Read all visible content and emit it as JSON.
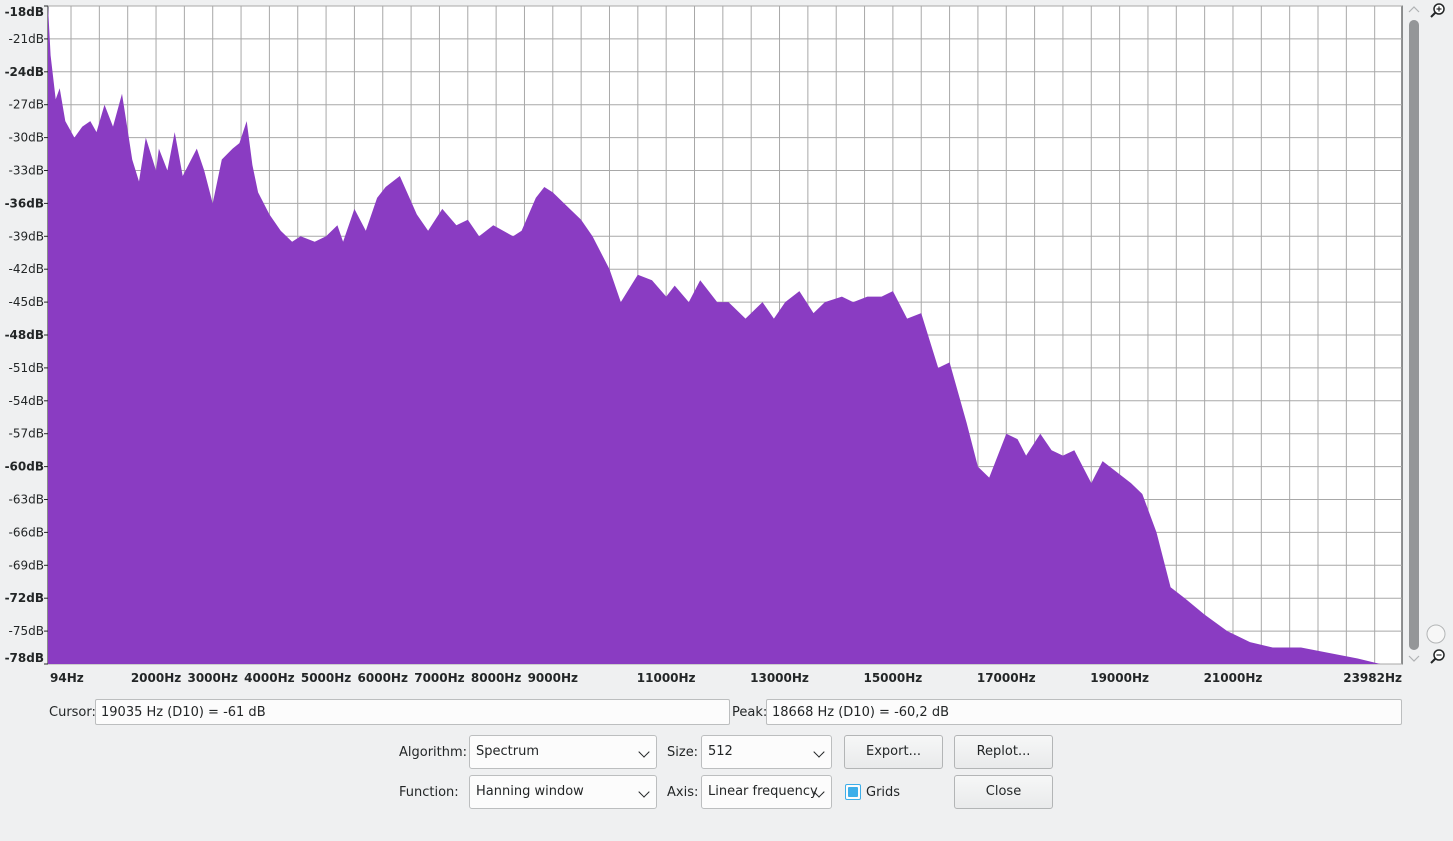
{
  "chart_data": {
    "type": "area",
    "color": "#8a3cc2",
    "grid": true,
    "xlim": [
      94,
      23982
    ],
    "ylim": [
      -78,
      -18
    ],
    "x_tick_labels": [
      {
        "hz": 94,
        "label": "94Hz"
      },
      {
        "hz": 2000,
        "label": "2000Hz"
      },
      {
        "hz": 3000,
        "label": "3000Hz"
      },
      {
        "hz": 4000,
        "label": "4000Hz"
      },
      {
        "hz": 5000,
        "label": "5000Hz"
      },
      {
        "hz": 6000,
        "label": "6000Hz"
      },
      {
        "hz": 7000,
        "label": "7000Hz"
      },
      {
        "hz": 8000,
        "label": "8000Hz"
      },
      {
        "hz": 9000,
        "label": "9000Hz"
      },
      {
        "hz": 11000,
        "label": "11000Hz"
      },
      {
        "hz": 13000,
        "label": "13000Hz"
      },
      {
        "hz": 15000,
        "label": "15000Hz"
      },
      {
        "hz": 17000,
        "label": "17000Hz"
      },
      {
        "hz": 19000,
        "label": "19000Hz"
      },
      {
        "hz": 21000,
        "label": "21000Hz"
      },
      {
        "hz": 23982,
        "label": "23982Hz"
      }
    ],
    "y_tick_labels": [
      {
        "db": -18,
        "label": "-18dB",
        "bold": true
      },
      {
        "db": -21,
        "label": "-21dB",
        "bold": false
      },
      {
        "db": -24,
        "label": "-24dB",
        "bold": true
      },
      {
        "db": -27,
        "label": "-27dB",
        "bold": false
      },
      {
        "db": -30,
        "label": "-30dB",
        "bold": false
      },
      {
        "db": -33,
        "label": "-33dB",
        "bold": false
      },
      {
        "db": -36,
        "label": "-36dB",
        "bold": true
      },
      {
        "db": -39,
        "label": "-39dB",
        "bold": false
      },
      {
        "db": -42,
        "label": "-42dB",
        "bold": false
      },
      {
        "db": -45,
        "label": "-45dB",
        "bold": false
      },
      {
        "db": -48,
        "label": "-48dB",
        "bold": true
      },
      {
        "db": -51,
        "label": "-51dB",
        "bold": false
      },
      {
        "db": -54,
        "label": "-54dB",
        "bold": false
      },
      {
        "db": -57,
        "label": "-57dB",
        "bold": false
      },
      {
        "db": -60,
        "label": "-60dB",
        "bold": true
      },
      {
        "db": -63,
        "label": "-63dB",
        "bold": false
      },
      {
        "db": -66,
        "label": "-66dB",
        "bold": false
      },
      {
        "db": -69,
        "label": "-69dB",
        "bold": false
      },
      {
        "db": -72,
        "label": "-72dB",
        "bold": true
      },
      {
        "db": -75,
        "label": "-75dB",
        "bold": false
      },
      {
        "db": -78,
        "label": "-78dB",
        "bold": true
      }
    ],
    "x": [
      94,
      140,
      230,
      300,
      400,
      560,
      700,
      840,
      950,
      1090,
      1240,
      1400,
      1580,
      1700,
      1820,
      2000,
      2050,
      2200,
      2330,
      2470,
      2720,
      2850,
      3000,
      3160,
      3350,
      3470,
      3600,
      3700,
      3800,
      4000,
      4200,
      4400,
      4550,
      4800,
      5000,
      5200,
      5300,
      5500,
      5700,
      5900,
      6050,
      6300,
      6600,
      6800,
      7050,
      7300,
      7500,
      7700,
      7950,
      8300,
      8450,
      8700,
      8850,
      9000,
      9200,
      9500,
      9700,
      10000,
      10200,
      10500,
      10750,
      11000,
      11150,
      11400,
      11600,
      11900,
      12100,
      12400,
      12700,
      12900,
      13100,
      13350,
      13600,
      13800,
      14100,
      14300,
      14550,
      14800,
      15000,
      15250,
      15500,
      15800,
      16000,
      16300,
      16500,
      16700,
      17000,
      17200,
      17350,
      17600,
      17800,
      18000,
      18200,
      18500,
      18700,
      18950,
      19200,
      19400,
      19650,
      19900,
      20150,
      20500,
      20900,
      21300,
      21700,
      22200,
      22700,
      23200,
      23600,
      23982
    ],
    "values": [
      -18,
      -22.5,
      -26.5,
      -25.5,
      -28.5,
      -30,
      -29,
      -28.5,
      -29.5,
      -27,
      -29,
      -26,
      -32,
      -34,
      -30,
      -33,
      -31,
      -33,
      -29.5,
      -33.5,
      -31,
      -33,
      -36,
      -32,
      -31,
      -30.5,
      -28.5,
      -32.5,
      -35,
      -37,
      -38.5,
      -39.5,
      -39,
      -39.5,
      -39,
      -38,
      -39.5,
      -36.5,
      -38.5,
      -35.5,
      -34.5,
      -33.5,
      -37,
      -38.5,
      -36.5,
      -38,
      -37.5,
      -39,
      -38,
      -39,
      -38.5,
      -35.5,
      -34.5,
      -35,
      -36,
      -37.5,
      -39,
      -42,
      -45,
      -42.5,
      -43,
      -44.5,
      -43.5,
      -45,
      -43,
      -45,
      -45,
      -46.5,
      -45,
      -46.5,
      -45,
      -44,
      -46,
      -45,
      -44.5,
      -45,
      -44.5,
      -44.5,
      -44,
      -46.5,
      -46,
      -51,
      -50.5,
      -56,
      -60,
      -61,
      -57,
      -57.5,
      -59,
      -57,
      -58.5,
      -59,
      -58.5,
      -61.5,
      -59.5,
      -60.5,
      -61.5,
      -62.5,
      -66,
      -71,
      -72,
      -73.5,
      -75,
      -76,
      -76.5,
      -76.5,
      -77,
      -77.5,
      -78,
      -78
    ]
  },
  "cursor": {
    "label": "Cursor:",
    "value": "19035 Hz (D10) = -61 dB"
  },
  "peak": {
    "label": "Peak:",
    "value": "18668 Hz (D10) = -60,2 dB"
  },
  "controls": {
    "algorithm_label": "Algorithm:",
    "algorithm_value": "Spectrum",
    "size_label": "Size:",
    "size_value": "512",
    "function_label": "Function:",
    "function_value": "Hanning window",
    "axis_label": "Axis:",
    "axis_value": "Linear frequency",
    "grids_label": "Grids",
    "grids_checked": true,
    "export_label": "Export...",
    "replot_label": "Replot...",
    "close_label": "Close"
  },
  "icons": {
    "zoom_in": "zoom-in-icon",
    "zoom_out": "zoom-out-icon"
  }
}
